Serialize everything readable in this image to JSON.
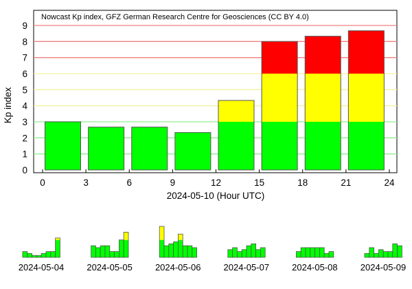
{
  "chart_data": [
    {
      "type": "bar",
      "stacked_by_threshold": true,
      "title": "Nowcast Kp index, GFZ German Research Centre for Geosciences (CC BY 4.0)",
      "xlabel": "2024-05-10 (Hour UTC)",
      "ylabel": "Kp index",
      "xlim": [
        0,
        24
      ],
      "ylim": [
        0,
        9
      ],
      "xticks": [
        "0",
        "3",
        "6",
        "9",
        "12",
        "15",
        "18",
        "21",
        "24"
      ],
      "yticks": [
        "0",
        "1",
        "2",
        "3",
        "4",
        "5",
        "6",
        "7",
        "8",
        "9"
      ],
      "x": [
        0,
        3,
        6,
        9,
        12,
        15,
        18,
        21
      ],
      "values": [
        3.0,
        2.67,
        2.67,
        2.33,
        4.33,
        8.0,
        8.33,
        8.67
      ],
      "grid": true,
      "thresholds": [
        3,
        6
      ],
      "colors": {
        "quiet": "#00ff00",
        "active": "#ffff00",
        "storm": "#ff0000",
        "grid_green": "#90ee90",
        "grid_yellow": "#f5f0a0",
        "grid_red": "#f08080"
      }
    },
    {
      "type": "bar",
      "small_multiples": true,
      "days": [
        {
          "label": "2024-05-04",
          "values": [
            1.0,
            0.67,
            0.33,
            0.33,
            0.67,
            1.0,
            1.0,
            3.33
          ]
        },
        {
          "label": "2024-05-05",
          "values": [
            2.0,
            1.67,
            2.0,
            2.0,
            1.0,
            1.0,
            3.0,
            4.33
          ]
        },
        {
          "label": "2024-05-06",
          "values": [
            5.33,
            2.0,
            2.33,
            2.67,
            4.0,
            2.0,
            2.0,
            1.67
          ]
        },
        {
          "label": "2024-05-07",
          "values": [
            1.33,
            1.67,
            1.0,
            1.33,
            2.0,
            2.33,
            1.33,
            1.67
          ]
        },
        {
          "label": "2024-05-08",
          "values": [
            1.0,
            1.67,
            1.67,
            1.67,
            1.67,
            1.67,
            0.67,
            1.0
          ]
        },
        {
          "label": "2024-05-09",
          "values": [
            0.67,
            1.67,
            0.67,
            1.33,
            1.0,
            1.0,
            2.33,
            2.0
          ]
        }
      ]
    }
  ]
}
